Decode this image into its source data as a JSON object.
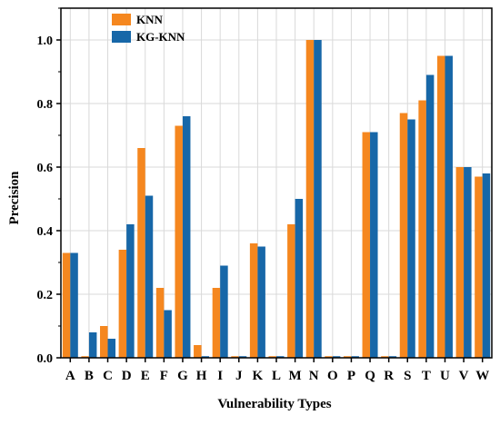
{
  "chart_data": {
    "type": "bar",
    "xlabel": "Vulnerability Types",
    "ylabel": "Precision",
    "ylim": [
      0,
      1.1
    ],
    "yticks": [
      "0.0",
      "0.2",
      "0.4",
      "0.6",
      "0.8",
      "1.0"
    ],
    "ytick_values": [
      0,
      0.2,
      0.4,
      0.6,
      0.8,
      1.0
    ],
    "grid": true,
    "legend_position": "top-left",
    "categories": [
      "A",
      "B",
      "C",
      "D",
      "E",
      "F",
      "G",
      "H",
      "I",
      "J",
      "K",
      "L",
      "M",
      "N",
      "O",
      "P",
      "Q",
      "R",
      "S",
      "T",
      "U",
      "V",
      "W"
    ],
    "series": [
      {
        "name": "KNN",
        "color": "#F5871F",
        "values": [
          0.33,
          0.005,
          0.1,
          0.34,
          0.66,
          0.22,
          0.73,
          0.04,
          0.22,
          0.005,
          0.36,
          0.005,
          0.42,
          1.0,
          0.005,
          0.005,
          0.71,
          0.005,
          0.77,
          0.81,
          0.95,
          0.6,
          0.57
        ]
      },
      {
        "name": "KG-KNN",
        "color": "#1767A8",
        "values": [
          0.33,
          0.08,
          0.06,
          0.42,
          0.51,
          0.15,
          0.76,
          0.005,
          0.29,
          0.005,
          0.35,
          0.005,
          0.5,
          1.0,
          0.005,
          0.005,
          0.71,
          0.005,
          0.75,
          0.89,
          0.95,
          0.6,
          0.58
        ]
      }
    ]
  }
}
